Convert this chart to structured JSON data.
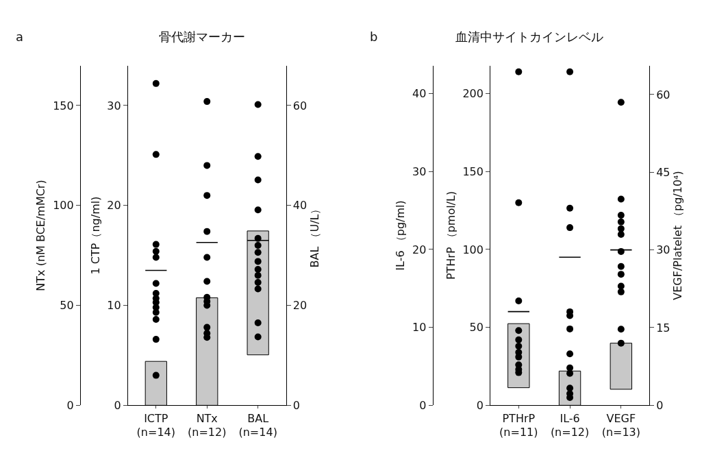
{
  "chart_data": [
    {
      "type": "scatter",
      "title": "骨代謝マーカー",
      "annotations": [
        "a"
      ],
      "categories": [
        "ICTP\n(n=14)",
        "NTx\n(n=12)",
        "BAL\n(n=14)"
      ],
      "ylabel": "1 CTP（ng/ml)",
      "y2label": "BAL （U/L）",
      "y3label": "NTx (nM BCE/mMCr)",
      "ylim": [
        0,
        34
      ],
      "yticks": [
        0,
        10,
        20,
        30
      ],
      "y2lim": [
        0,
        68
      ],
      "y2ticks": [
        0,
        20,
        40,
        60
      ],
      "y3lim": [
        0,
        170
      ],
      "y3ticks": [
        0,
        50,
        100,
        150
      ],
      "series": [
        {
          "type": "bar",
          "axis": "y",
          "color": "#c8c8c8",
          "values": [
            4.4,
            null,
            null
          ],
          "base": [
            0,
            null,
            null
          ]
        },
        {
          "type": "bar",
          "axis": "y3",
          "color": "#c8c8c8",
          "values": [
            null,
            53.8,
            null
          ],
          "base": [
            null,
            0,
            null
          ]
        },
        {
          "type": "bar",
          "axis": "y2",
          "color": "#c8c8c8",
          "values": [
            null,
            null,
            24.8
          ],
          "base": [
            null,
            null,
            10.1
          ]
        },
        {
          "axis": "y",
          "color": "#000000",
          "marker": "circle",
          "x": [
            "ICTP\n(n=14)",
            "ICTP\n(n=14)",
            "ICTP\n(n=14)",
            "ICTP\n(n=14)",
            "ICTP\n(n=14)",
            "ICTP\n(n=14)",
            "ICTP\n(n=14)",
            "ICTP\n(n=14)",
            "ICTP\n(n=14)",
            "ICTP\n(n=14)",
            "ICTP\n(n=14)",
            "ICTP\n(n=14)",
            "ICTP\n(n=14)",
            "ICTP\n(n=14)"
          ],
          "values": [
            32.2,
            25.1,
            16.1,
            15.4,
            14.8,
            12.2,
            11.2,
            10.7,
            10.3,
            9.8,
            9.3,
            8.6,
            6.6,
            3.0
          ]
        },
        {
          "axis": "y3",
          "color": "#000000",
          "marker": "circle",
          "x": [
            "NTx\n(n=12)",
            "NTx\n(n=12)",
            "NTx\n(n=12)",
            "NTx\n(n=12)",
            "NTx\n(n=12)",
            "NTx\n(n=12)",
            "NTx\n(n=12)",
            "NTx\n(n=12)",
            "NTx\n(n=12)",
            "NTx\n(n=12)",
            "NTx\n(n=12)",
            "NTx\n(n=12)"
          ],
          "values": [
            152,
            120,
            105,
            87,
            74,
            62,
            54,
            52,
            50,
            39,
            36,
            34
          ]
        },
        {
          "axis": "y2",
          "color": "#000000",
          "marker": "circle",
          "x": [
            "BAL\n(n=14)",
            "BAL\n(n=14)",
            "BAL\n(n=14)",
            "BAL\n(n=14)",
            "BAL\n(n=14)",
            "BAL\n(n=14)",
            "BAL\n(n=14)",
            "BAL\n(n=14)",
            "BAL\n(n=14)",
            "BAL\n(n=14)",
            "BAL\n(n=14)",
            "BAL\n(n=14)",
            "BAL\n(n=14)",
            "BAL\n(n=14)"
          ],
          "values": [
            60.2,
            49.8,
            45.1,
            39.1,
            33.4,
            32.0,
            30.6,
            28.8,
            27.2,
            26.0,
            24.6,
            23.3,
            16.5,
            13.7
          ]
        }
      ],
      "ref_lines": [
        {
          "axis": "y",
          "value": 13.5,
          "color": "#000000"
        },
        {
          "axis": "y3",
          "value": 81.5,
          "color": "#000000"
        },
        {
          "axis": "y2",
          "value": 33.0,
          "color": "#000000"
        }
      ]
    },
    {
      "type": "scatter",
      "title": "血清中サイトカインレベル",
      "annotations": [
        "b"
      ],
      "categories": [
        "PTHrP\n(n=11)",
        "IL-6\n(n=12)",
        "VEGF\n(n=13)"
      ],
      "ylabel": "PTHrP （pmol/L)",
      "y2label": "VEGF/Platelet （pg/10⁴)",
      "y3label": "IL-6 （pg/ml)",
      "ylim": [
        0,
        218
      ],
      "yticks": [
        0,
        50,
        100,
        150,
        200
      ],
      "y2lim": [
        0,
        65.6
      ],
      "y2ticks": [
        0,
        15,
        30,
        45,
        60
      ],
      "y3lim": [
        0,
        43.6
      ],
      "y3ticks": [
        0,
        10,
        20,
        30,
        40
      ],
      "series": [
        {
          "type": "bar",
          "axis": "y",
          "color": "#c8c8c8",
          "values": [
            41.1,
            null,
            null
          ],
          "base": [
            11.3,
            null,
            null
          ]
        },
        {
          "type": "bar",
          "axis": "y3",
          "color": "#c8c8c8",
          "values": [
            null,
            4.4,
            null
          ],
          "base": [
            null,
            0,
            null
          ]
        },
        {
          "type": "bar",
          "axis": "y2",
          "color": "#c8c8c8",
          "values": [
            null,
            null,
            8.9
          ],
          "base": [
            null,
            null,
            3.1
          ]
        },
        {
          "axis": "y",
          "color": "#000000",
          "marker": "circle",
          "x": [
            "PTHrP\n(n=11)",
            "PTHrP\n(n=11)",
            "PTHrP\n(n=11)",
            "PTHrP\n(n=11)",
            "PTHrP\n(n=11)",
            "PTHrP\n(n=11)",
            "PTHrP\n(n=11)",
            "PTHrP\n(n=11)",
            "PTHrP\n(n=11)",
            "PTHrP\n(n=11)",
            "PTHrP\n(n=11)"
          ],
          "values": [
            214,
            130,
            67,
            48,
            42,
            38,
            34,
            31,
            26,
            23,
            21
          ]
        },
        {
          "axis": "y3",
          "color": "#000000",
          "marker": "circle",
          "x": [
            "IL-6\n(n=12)",
            "IL-6\n(n=12)",
            "IL-6\n(n=12)",
            "IL-6\n(n=12)",
            "IL-6\n(n=12)",
            "IL-6\n(n=12)",
            "IL-6\n(n=12)",
            "IL-6\n(n=12)",
            "IL-6\n(n=12)",
            "IL-6\n(n=12)",
            "IL-6\n(n=12)",
            "IL-6\n(n=12)"
          ],
          "values": [
            42.8,
            25.3,
            22.8,
            12.0,
            11.5,
            9.8,
            6.6,
            4.8,
            4.1,
            2.2,
            1.5,
            1.0
          ]
        },
        {
          "axis": "y2",
          "color": "#000000",
          "marker": "circle",
          "x": [
            "VEGF\n(n=13)",
            "VEGF\n(n=13)",
            "VEGF\n(n=13)",
            "VEGF\n(n=13)",
            "VEGF\n(n=13)",
            "VEGF\n(n=13)",
            "VEGF\n(n=13)",
            "VEGF\n(n=13)",
            "VEGF\n(n=13)",
            "VEGF\n(n=13)",
            "VEGF\n(n=13)",
            "VEGF\n(n=13)",
            "VEGF\n(n=13)"
          ],
          "values": [
            58.5,
            39.8,
            36.7,
            35.4,
            34.1,
            33.0,
            29.7,
            26.8,
            25.3,
            23.0,
            21.9,
            14.7,
            12.0
          ]
        }
      ],
      "ref_lines": [
        {
          "axis": "y",
          "value": 60.1,
          "color": "#000000"
        },
        {
          "axis": "y3",
          "value": 19.0,
          "color": "#000000"
        },
        {
          "axis": "y2",
          "value": 30.0,
          "color": "#000000"
        }
      ]
    }
  ]
}
